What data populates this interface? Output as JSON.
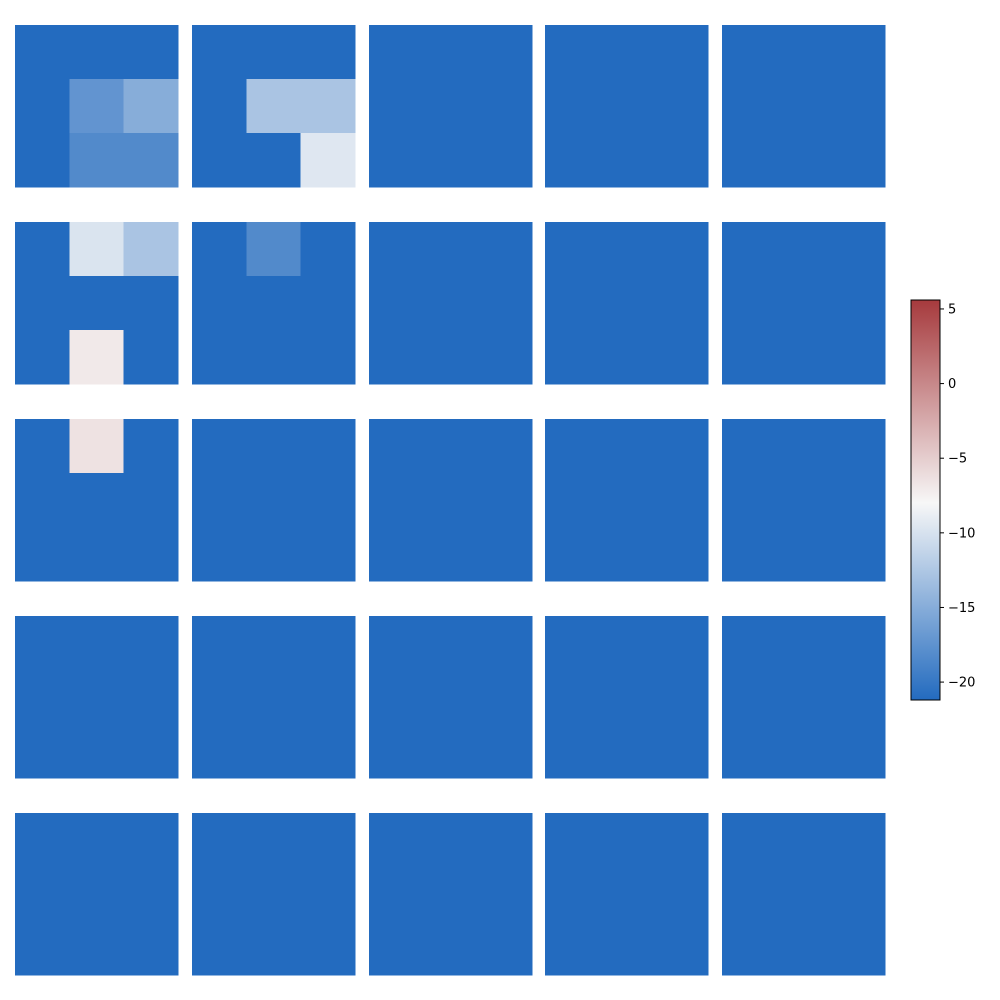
{
  "chart_data": {
    "type": "heatmap",
    "layout": {
      "rows": 5,
      "cols": 5,
      "cells_per_panel": 3
    },
    "colormap": {
      "name": "diverging blue-white-red",
      "stops": [
        {
          "value": -21.2,
          "color": "#236bbf"
        },
        {
          "value": -8,
          "color": "#f7f7f7"
        },
        {
          "value": 5.6,
          "color": "#a63a3d"
        }
      ],
      "vmin": -21.2,
      "vmax": 5.6
    },
    "colorbar": {
      "ticks": [
        5,
        0,
        -5,
        -10,
        -15,
        -20
      ],
      "tick_labels": [
        "5",
        "0",
        "−5",
        "−10",
        "−15",
        "−20"
      ]
    },
    "panels": [
      [
        [
          [
            -21.2,
            -21.2,
            -21.2
          ],
          [
            -21.2,
            -17.3,
            -15.0
          ],
          [
            -21.2,
            -18.3,
            -18.3
          ]
        ],
        [
          [
            -21.2,
            -21.2,
            -21.2
          ],
          [
            -21.2,
            -12.8,
            -12.8
          ],
          [
            -21.2,
            -21.2,
            -9.5
          ]
        ],
        [
          [
            -21.2,
            -21.2,
            -21.2
          ],
          [
            -21.2,
            -21.2,
            -21.2
          ],
          [
            -21.2,
            -21.2,
            -21.2
          ]
        ],
        [
          [
            -21.2,
            -21.2,
            -21.2
          ],
          [
            -21.2,
            -21.2,
            -21.2
          ],
          [
            -21.2,
            -21.2,
            -21.2
          ]
        ],
        [
          [
            -21.2,
            -21.2,
            -21.2
          ],
          [
            -21.2,
            -21.2,
            -21.2
          ],
          [
            -21.2,
            -21.2,
            -21.2
          ]
        ]
      ],
      [
        [
          [
            -21.2,
            -9.8,
            -12.8
          ],
          [
            -21.2,
            -21.2,
            -21.2
          ],
          [
            -21.2,
            -7.0,
            -21.2
          ]
        ],
        [
          [
            -21.2,
            -18.3,
            -21.2
          ],
          [
            -21.2,
            -21.2,
            -21.2
          ],
          [
            -21.2,
            -21.2,
            -21.2
          ]
        ],
        [
          [
            -21.2,
            -21.2,
            -21.2
          ],
          [
            -21.2,
            -21.2,
            -21.2
          ],
          [
            -21.2,
            -21.2,
            -21.2
          ]
        ],
        [
          [
            -21.2,
            -21.2,
            -21.2
          ],
          [
            -21.2,
            -21.2,
            -21.2
          ],
          [
            -21.2,
            -21.2,
            -21.2
          ]
        ],
        [
          [
            -21.2,
            -21.2,
            -21.2
          ],
          [
            -21.2,
            -21.2,
            -21.2
          ],
          [
            -21.2,
            -21.2,
            -21.2
          ]
        ]
      ],
      [
        [
          [
            -21.2,
            -6.5,
            -21.2
          ],
          [
            -21.2,
            -21.2,
            -21.2
          ],
          [
            -21.2,
            -21.2,
            -21.2
          ]
        ],
        [
          [
            -21.2,
            -21.2,
            -21.2
          ],
          [
            -21.2,
            -21.2,
            -21.2
          ],
          [
            -21.2,
            -21.2,
            -21.2
          ]
        ],
        [
          [
            -21.2,
            -21.2,
            -21.2
          ],
          [
            -21.2,
            -21.2,
            -21.2
          ],
          [
            -21.2,
            -21.2,
            -21.2
          ]
        ],
        [
          [
            -21.2,
            -21.2,
            -21.2
          ],
          [
            -21.2,
            -21.2,
            -21.2
          ],
          [
            -21.2,
            -21.2,
            -21.2
          ]
        ],
        [
          [
            -21.2,
            -21.2,
            -21.2
          ],
          [
            -21.2,
            -21.2,
            -21.2
          ],
          [
            -21.2,
            -21.2,
            -21.2
          ]
        ]
      ],
      [
        [
          [
            -21.2,
            -21.2,
            -21.2
          ],
          [
            -21.2,
            -21.2,
            -21.2
          ],
          [
            -21.2,
            -21.2,
            -21.2
          ]
        ],
        [
          [
            -21.2,
            -21.2,
            -21.2
          ],
          [
            -21.2,
            -21.2,
            -21.2
          ],
          [
            -21.2,
            -21.2,
            -21.2
          ]
        ],
        [
          [
            -21.2,
            -21.2,
            -21.2
          ],
          [
            -21.2,
            -21.2,
            -21.2
          ],
          [
            -21.2,
            -21.2,
            -21.2
          ]
        ],
        [
          [
            -21.2,
            -21.2,
            -21.2
          ],
          [
            -21.2,
            -21.2,
            -21.2
          ],
          [
            -21.2,
            -21.2,
            -21.2
          ]
        ],
        [
          [
            -21.2,
            -21.2,
            -21.2
          ],
          [
            -21.2,
            -21.2,
            -21.2
          ],
          [
            -21.2,
            -21.2,
            -21.2
          ]
        ]
      ],
      [
        [
          [
            -21.2,
            -21.2,
            -21.2
          ],
          [
            -21.2,
            -21.2,
            -21.2
          ],
          [
            -21.2,
            -21.2,
            -21.2
          ]
        ],
        [
          [
            -21.2,
            -21.2,
            -21.2
          ],
          [
            -21.2,
            -21.2,
            -21.2
          ],
          [
            -21.2,
            -21.2,
            -21.2
          ]
        ],
        [
          [
            -21.2,
            -21.2,
            -21.2
          ],
          [
            -21.2,
            -21.2,
            -21.2
          ],
          [
            -21.2,
            -21.2,
            -21.2
          ]
        ],
        [
          [
            -21.2,
            -21.2,
            -21.2
          ],
          [
            -21.2,
            -21.2,
            -21.2
          ],
          [
            -21.2,
            -21.2,
            -21.2
          ]
        ],
        [
          [
            -21.2,
            -21.2,
            -21.2
          ],
          [
            -21.2,
            -21.2,
            -21.2
          ],
          [
            -21.2,
            -21.2,
            -21.2
          ]
        ]
      ]
    ]
  }
}
